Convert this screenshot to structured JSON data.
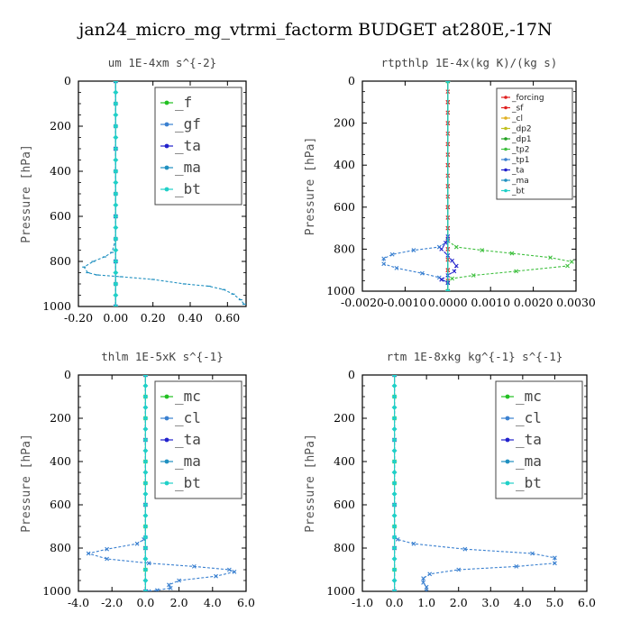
{
  "title": "jan24_micro_mg_vtrmi_factorm  BUDGET at280E,-17N",
  "chart_data": [
    {
      "type": "line",
      "title": "um   1E-4xm s^{-2}",
      "ylabel": "Pressure [hPa]",
      "xlim": [
        -0.2,
        0.7
      ],
      "ylim": [
        1000,
        0
      ],
      "xticks": [
        "-0.20",
        "0.00",
        "0.20",
        "0.40",
        "0.60"
      ],
      "xtick_values": [
        -0.2,
        0.0,
        0.2,
        0.4,
        0.6
      ],
      "yticks": [
        "0",
        "200",
        "400",
        "600",
        "800",
        "1000"
      ],
      "legend_style": "big",
      "legend_position": "top-right",
      "series": [
        {
          "name": "_f",
          "color": "#22c022",
          "marker": "x",
          "x": [
            0,
            0,
            0,
            0,
            0,
            0,
            0,
            0,
            0,
            0,
            0
          ],
          "y": [
            0,
            100,
            200,
            300,
            400,
            500,
            600,
            700,
            800,
            900,
            1000
          ]
        },
        {
          "name": "_gf",
          "color": "#3a80d0",
          "marker": "x",
          "x": [
            0,
            0,
            0,
            0,
            0,
            0,
            0,
            0,
            0,
            0,
            0
          ],
          "y": [
            0,
            100,
            200,
            300,
            400,
            500,
            600,
            700,
            800,
            900,
            1000
          ]
        },
        {
          "name": "_ta",
          "color": "#2222cc",
          "marker": "x",
          "x": [
            0,
            0,
            0,
            0,
            0
          ],
          "y": [
            0,
            300,
            600,
            800,
            1000
          ]
        },
        {
          "name": "_ma",
          "color": "#2090c0",
          "marker": "dash",
          "x": [
            0.0,
            0.0,
            -0.02,
            -0.06,
            -0.12,
            -0.17,
            -0.15,
            -0.1,
            0.03,
            0.2,
            0.37,
            0.5,
            0.58,
            0.63,
            0.67,
            0.69
          ],
          "y": [
            0,
            700,
            760,
            780,
            800,
            825,
            850,
            860,
            868,
            880,
            900,
            910,
            925,
            945,
            970,
            990
          ]
        },
        {
          "name": "_bt",
          "color": "#20d0c8",
          "marker": "diamond",
          "x": [
            0,
            0,
            0,
            0,
            0,
            0,
            0,
            0,
            0,
            0,
            0,
            0,
            0,
            0,
            0,
            0,
            0,
            0,
            0,
            0,
            0
          ],
          "y": [
            0,
            50,
            100,
            150,
            200,
            250,
            300,
            350,
            400,
            450,
            500,
            550,
            600,
            650,
            700,
            750,
            800,
            850,
            900,
            950,
            1000
          ]
        }
      ]
    },
    {
      "type": "line",
      "title": "rtpthlp   1E-4x(kg K)/(kg s)",
      "ylabel": "Pressure [hPa]",
      "xlim": [
        -0.002,
        0.003
      ],
      "ylim": [
        1000,
        0
      ],
      "xticks": [
        "-0.0020",
        "-0.0010",
        "0.0000",
        "0.0010",
        "0.0020",
        "0.0030"
      ],
      "xtick_values": [
        -0.002,
        -0.001,
        0.0,
        0.001,
        0.002,
        0.003
      ],
      "yticks": [
        "0",
        "200",
        "400",
        "600",
        "800",
        "1000"
      ],
      "legend_style": "small",
      "legend_position": "top-right",
      "series": [
        {
          "name": "_forcing",
          "color": "#e02020",
          "marker": "x",
          "x": [
            0,
            0,
            0,
            0,
            0,
            0,
            0,
            0,
            0,
            0,
            0
          ],
          "y": [
            0,
            100,
            200,
            300,
            400,
            500,
            600,
            700,
            800,
            900,
            1000
          ]
        },
        {
          "name": "_sf",
          "color": "#e02020",
          "marker": "x",
          "x": [
            0,
            0,
            0,
            0,
            0,
            0,
            0,
            0,
            0,
            0,
            0,
            0,
            0,
            0,
            0,
            0,
            0,
            0,
            0,
            0,
            0
          ],
          "y": [
            0,
            50,
            100,
            150,
            200,
            250,
            300,
            350,
            400,
            450,
            500,
            550,
            600,
            650,
            700,
            750,
            800,
            850,
            900,
            950,
            1000
          ]
        },
        {
          "name": "_cl",
          "color": "#e0b020",
          "marker": "x",
          "x": [
            0,
            0
          ],
          "y": [
            0,
            1000
          ]
        },
        {
          "name": "_dp2",
          "color": "#c0c020",
          "marker": "x",
          "x": [
            0,
            0
          ],
          "y": [
            0,
            1000
          ]
        },
        {
          "name": "_dp1",
          "color": "#20a020",
          "marker": "x",
          "x": [
            0,
            0
          ],
          "y": [
            0,
            1000
          ]
        },
        {
          "name": "_tp2",
          "color": "#40c040",
          "marker": "x",
          "x": [
            0,
            0.0002,
            0.0008,
            0.0015,
            0.0024,
            0.0029,
            0.0028,
            0.0016,
            0.0006,
            0.0001,
            0
          ],
          "y": [
            760,
            790,
            805,
            820,
            840,
            860,
            880,
            905,
            925,
            940,
            960
          ]
        },
        {
          "name": "_tp1",
          "color": "#3a80d0",
          "marker": "x",
          "x": [
            0,
            -0.0002,
            -0.0008,
            -0.0013,
            -0.0015,
            -0.0015,
            -0.0012,
            -0.0006,
            -0.0002,
            0
          ],
          "y": [
            760,
            790,
            805,
            825,
            845,
            870,
            890,
            915,
            935,
            960
          ]
        },
        {
          "name": "_ta",
          "color": "#2222cc",
          "marker": "x",
          "x": [
            0,
            -5e-05,
            -0.00015,
            0.0,
            0.0001,
            0.0002,
            0.00015,
            0.0,
            -0.00015,
            0
          ],
          "y": [
            740,
            770,
            800,
            830,
            855,
            880,
            905,
            925,
            945,
            960
          ]
        },
        {
          "name": "_ma",
          "color": "#2090c0",
          "marker": "dash",
          "x": [
            0,
            0
          ],
          "y": [
            0,
            1000
          ]
        },
        {
          "name": "_bt",
          "color": "#20d0c8",
          "marker": "diamond",
          "x": [
            0,
            0
          ],
          "y": [
            0,
            1000
          ]
        }
      ]
    },
    {
      "type": "line",
      "title": "thlm   1E-5xK s^{-1}",
      "ylabel": "Pressure [hPa]",
      "xlim": [
        -4.0,
        6.0
      ],
      "ylim": [
        1000,
        0
      ],
      "xticks": [
        "-4.0",
        "-2.0",
        "0.0",
        "2.0",
        "4.0",
        "6.0"
      ],
      "xtick_values": [
        -4,
        -2,
        0,
        2,
        4,
        6
      ],
      "yticks": [
        "0",
        "200",
        "400",
        "600",
        "800",
        "1000"
      ],
      "legend_style": "big",
      "legend_position": "top-right",
      "series": [
        {
          "name": "_mc",
          "color": "#22c022",
          "marker": "x",
          "x": [
            0,
            0,
            0,
            0,
            0,
            0,
            0,
            0,
            0,
            0,
            0
          ],
          "y": [
            0,
            100,
            200,
            300,
            400,
            500,
            600,
            700,
            800,
            900,
            1000
          ]
        },
        {
          "name": "_cl",
          "color": "#3a80d0",
          "marker": "x",
          "x": [
            0,
            -0.1,
            -0.5,
            -2.3,
            -3.4,
            -2.3,
            0.2,
            2.9,
            5.0,
            5.3,
            4.2,
            2.0,
            1.4,
            1.5,
            0.7,
            0.2
          ],
          "y": [
            750,
            760,
            780,
            805,
            825,
            850,
            870,
            885,
            900,
            910,
            930,
            950,
            970,
            985,
            995,
            1000
          ]
        },
        {
          "name": "_ta",
          "color": "#2222cc",
          "marker": "x",
          "x": [
            0,
            0,
            0,
            0,
            0
          ],
          "y": [
            0,
            300,
            600,
            800,
            1000
          ]
        },
        {
          "name": "_ma",
          "color": "#2090c0",
          "marker": "dash",
          "x": [
            0,
            0
          ],
          "y": [
            0,
            1000
          ]
        },
        {
          "name": "_bt",
          "color": "#20d0c8",
          "marker": "diamond",
          "x": [
            0,
            0,
            0,
            0,
            0,
            0,
            0,
            0,
            0,
            0,
            0,
            0,
            0,
            0,
            0,
            0,
            0,
            0,
            0,
            0,
            0
          ],
          "y": [
            0,
            50,
            100,
            150,
            200,
            250,
            300,
            350,
            400,
            450,
            500,
            550,
            600,
            650,
            700,
            750,
            800,
            850,
            900,
            950,
            1000
          ]
        }
      ]
    },
    {
      "type": "line",
      "title": "rtm   1E-8xkg kg^{-1} s^{-1}",
      "ylabel": "Pressure [hPa]",
      "xlim": [
        -1.0,
        6.0
      ],
      "ylim": [
        1000,
        0
      ],
      "xticks": [
        "-1.0",
        "0.0",
        "1.0",
        "2.0",
        "3.0",
        "4.0",
        "5.0",
        "6.0"
      ],
      "xtick_values": [
        -1,
        0,
        1,
        2,
        3,
        4,
        5,
        6
      ],
      "yticks": [
        "0",
        "200",
        "400",
        "600",
        "800",
        "1000"
      ],
      "legend_style": "big",
      "legend_position": "top-right",
      "series": [
        {
          "name": "_mc",
          "color": "#22c022",
          "marker": "x",
          "x": [
            0,
            0,
            0,
            0,
            0,
            0,
            0,
            0,
            0,
            0,
            0
          ],
          "y": [
            0,
            100,
            200,
            300,
            400,
            500,
            600,
            700,
            800,
            900,
            1000
          ]
        },
        {
          "name": "_cl",
          "color": "#3a80d0",
          "marker": "x",
          "x": [
            0,
            0.1,
            0.6,
            2.2,
            4.3,
            5.0,
            5.0,
            3.8,
            2.0,
            1.1,
            0.9,
            0.9,
            1.0,
            1.0
          ],
          "y": [
            750,
            760,
            780,
            805,
            825,
            845,
            870,
            885,
            900,
            920,
            940,
            960,
            980,
            1000
          ]
        },
        {
          "name": "_ta",
          "color": "#2222cc",
          "marker": "x",
          "x": [
            0,
            0,
            0,
            0,
            0
          ],
          "y": [
            0,
            300,
            600,
            800,
            1000
          ]
        },
        {
          "name": "_ma",
          "color": "#2090c0",
          "marker": "dash",
          "x": [
            0,
            0
          ],
          "y": [
            0,
            1000
          ]
        },
        {
          "name": "_bt",
          "color": "#20d0c8",
          "marker": "diamond",
          "x": [
            0,
            0,
            0,
            0,
            0,
            0,
            0,
            0,
            0,
            0,
            0,
            0,
            0,
            0,
            0,
            0,
            0,
            0,
            0,
            0,
            0
          ],
          "y": [
            0,
            50,
            100,
            150,
            200,
            250,
            300,
            350,
            400,
            450,
            500,
            550,
            600,
            650,
            700,
            750,
            800,
            850,
            900,
            950,
            1000
          ]
        }
      ]
    }
  ]
}
